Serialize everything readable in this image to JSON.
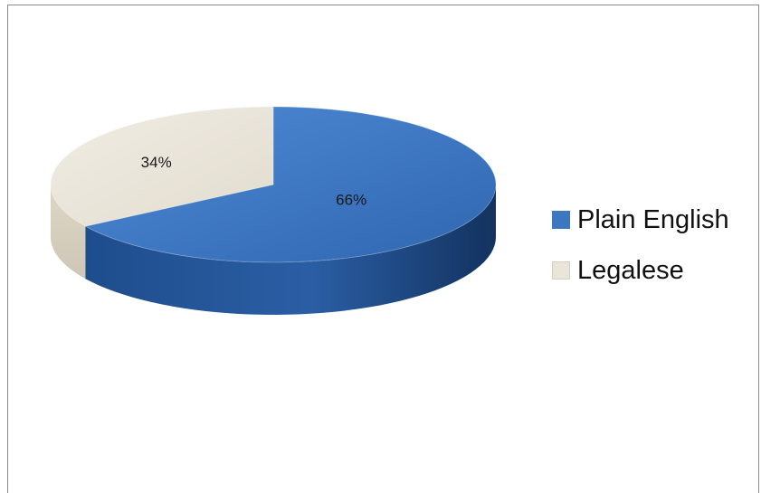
{
  "colors": {
    "plain_english": "#3c77c0",
    "legalese": "#eae5db"
  },
  "chart_data": {
    "type": "pie",
    "variant": "3d",
    "slices": [
      {
        "label": "Plain English",
        "value": 66,
        "display": "66%",
        "color": "#3c77c0"
      },
      {
        "label": "Legalese",
        "value": 34,
        "display": "34%",
        "color": "#eae5db"
      }
    ],
    "legend": {
      "position": "right",
      "items": [
        "Plain English",
        "Legalese"
      ]
    }
  }
}
